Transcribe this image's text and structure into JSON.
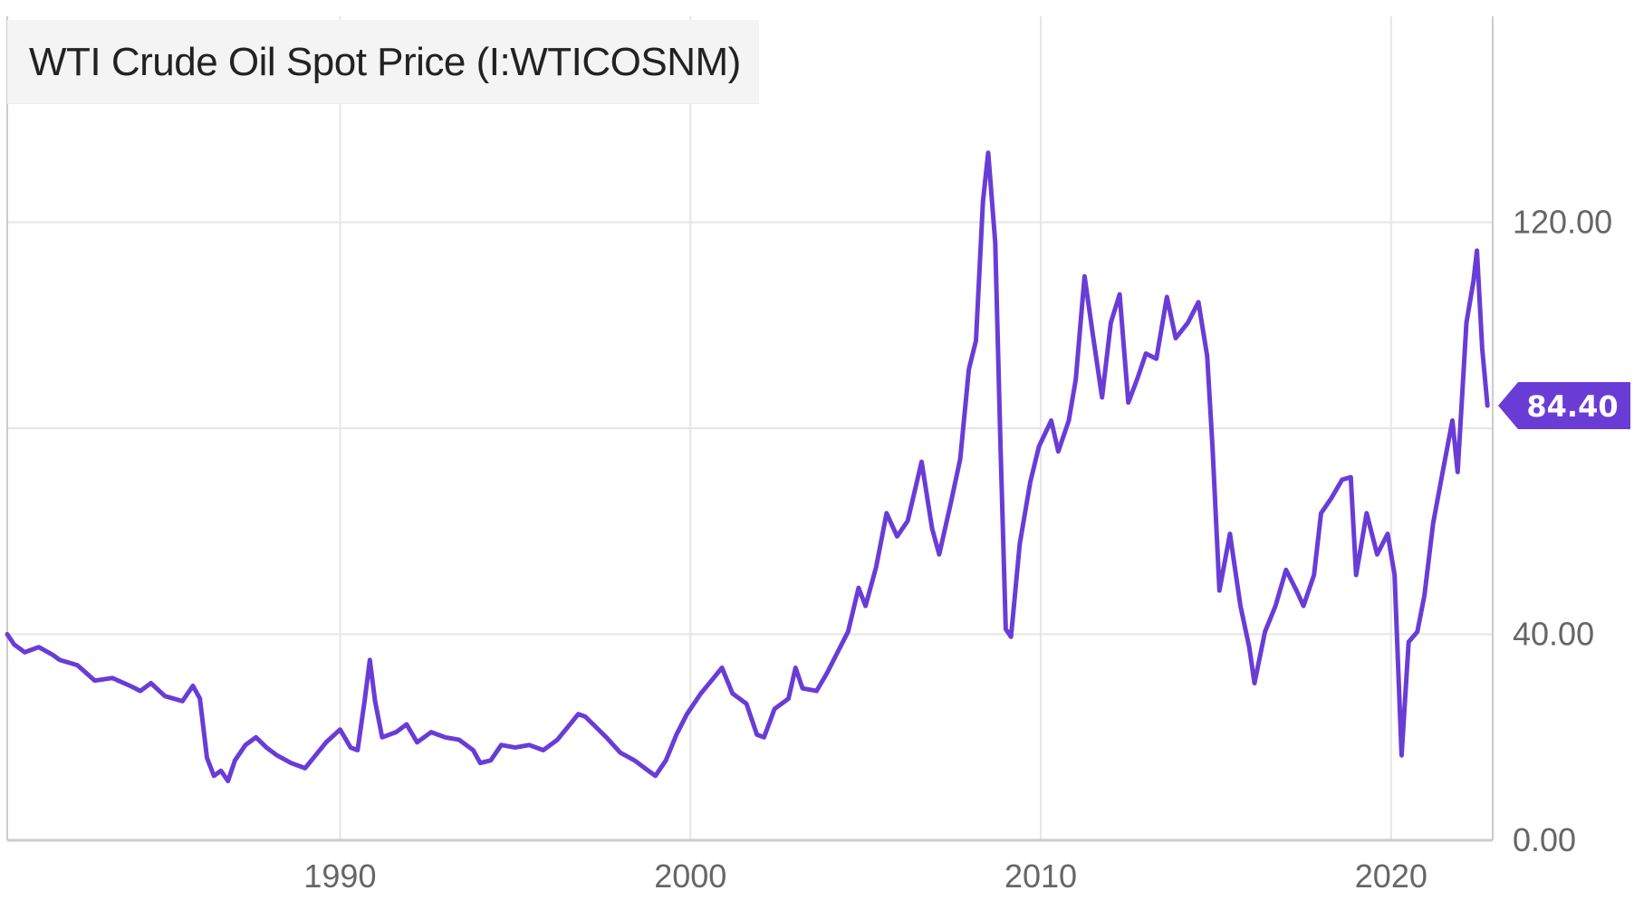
{
  "chart_data": {
    "type": "line",
    "title": "WTI Crude Oil Spot Price (I:WTICOSNM)",
    "xlabel": "",
    "ylabel": "",
    "xlim": [
      1980.5,
      2022.9
    ],
    "ylim": [
      0,
      160
    ],
    "x_ticks": [
      1990,
      2000,
      2010,
      2020
    ],
    "x_tick_labels": [
      "1990",
      "2000",
      "2010",
      "2020"
    ],
    "y_ticks": [
      0,
      40,
      80,
      120
    ],
    "y_tick_labels": [
      "0.00",
      "40.00",
      "",
      "120.00"
    ],
    "grid": true,
    "last_value_label": "84.40",
    "colors": {
      "line": "#6a3cd6",
      "badge": "#6a3cd6",
      "grid": "#e6e6e6",
      "axis": "#cccccc"
    },
    "series": [
      {
        "values": [
          [
            1980.5,
            40.0
          ],
          [
            1980.7,
            38.0
          ],
          [
            1981.0,
            36.5
          ],
          [
            1981.4,
            37.5
          ],
          [
            1981.8,
            36.0
          ],
          [
            1982.0,
            35.0
          ],
          [
            1982.5,
            34.0
          ],
          [
            1983.0,
            31.0
          ],
          [
            1983.5,
            31.5
          ],
          [
            1984.0,
            30.0
          ],
          [
            1984.3,
            29.0
          ],
          [
            1984.6,
            30.5
          ],
          [
            1985.0,
            28.0
          ],
          [
            1985.5,
            27.0
          ],
          [
            1985.8,
            30.0
          ],
          [
            1986.0,
            27.5
          ],
          [
            1986.2,
            16.0
          ],
          [
            1986.4,
            12.5
          ],
          [
            1986.6,
            13.5
          ],
          [
            1986.8,
            11.5
          ],
          [
            1987.0,
            15.5
          ],
          [
            1987.3,
            18.5
          ],
          [
            1987.6,
            20.0
          ],
          [
            1987.9,
            18.0
          ],
          [
            1988.2,
            16.5
          ],
          [
            1988.6,
            15.0
          ],
          [
            1989.0,
            14.0
          ],
          [
            1989.3,
            16.5
          ],
          [
            1989.6,
            19.0
          ],
          [
            1990.0,
            21.5
          ],
          [
            1990.3,
            18.0
          ],
          [
            1990.5,
            17.5
          ],
          [
            1990.7,
            27.0
          ],
          [
            1990.85,
            35.0
          ],
          [
            1991.0,
            27.0
          ],
          [
            1991.2,
            20.0
          ],
          [
            1991.6,
            21.0
          ],
          [
            1991.9,
            22.5
          ],
          [
            1992.2,
            19.0
          ],
          [
            1992.6,
            21.0
          ],
          [
            1993.0,
            20.0
          ],
          [
            1993.4,
            19.5
          ],
          [
            1993.8,
            17.5
          ],
          [
            1994.0,
            15.0
          ],
          [
            1994.3,
            15.5
          ],
          [
            1994.6,
            18.5
          ],
          [
            1995.0,
            18.0
          ],
          [
            1995.4,
            18.5
          ],
          [
            1995.8,
            17.5
          ],
          [
            1996.2,
            19.5
          ],
          [
            1996.5,
            22.0
          ],
          [
            1996.8,
            24.5
          ],
          [
            1997.0,
            24.0
          ],
          [
            1997.3,
            22.0
          ],
          [
            1997.6,
            20.0
          ],
          [
            1998.0,
            17.0
          ],
          [
            1998.4,
            15.5
          ],
          [
            1998.8,
            13.5
          ],
          [
            1999.0,
            12.5
          ],
          [
            1999.3,
            15.5
          ],
          [
            1999.6,
            20.5
          ],
          [
            1999.9,
            24.5
          ],
          [
            2000.3,
            28.5
          ],
          [
            2000.6,
            31.0
          ],
          [
            2000.9,
            33.5
          ],
          [
            2001.2,
            28.5
          ],
          [
            2001.6,
            26.5
          ],
          [
            2001.9,
            20.5
          ],
          [
            2002.1,
            20.0
          ],
          [
            2002.4,
            25.5
          ],
          [
            2002.8,
            27.5
          ],
          [
            2003.0,
            33.5
          ],
          [
            2003.2,
            29.5
          ],
          [
            2003.6,
            29.0
          ],
          [
            2003.9,
            32.5
          ],
          [
            2004.2,
            36.5
          ],
          [
            2004.5,
            40.5
          ],
          [
            2004.8,
            49.0
          ],
          [
            2005.0,
            45.5
          ],
          [
            2005.3,
            53.0
          ],
          [
            2005.6,
            63.5
          ],
          [
            2005.9,
            59.0
          ],
          [
            2006.2,
            62.0
          ],
          [
            2006.6,
            73.5
          ],
          [
            2006.9,
            60.5
          ],
          [
            2007.1,
            55.5
          ],
          [
            2007.4,
            64.5
          ],
          [
            2007.7,
            74.0
          ],
          [
            2007.95,
            91.5
          ],
          [
            2008.15,
            97.0
          ],
          [
            2008.35,
            124.0
          ],
          [
            2008.5,
            133.5
          ],
          [
            2008.7,
            116.0
          ],
          [
            2008.85,
            76.5
          ],
          [
            2009.0,
            41.0
          ],
          [
            2009.15,
            39.5
          ],
          [
            2009.4,
            57.5
          ],
          [
            2009.7,
            69.5
          ],
          [
            2009.95,
            76.5
          ],
          [
            2010.3,
            81.5
          ],
          [
            2010.5,
            75.5
          ],
          [
            2010.8,
            81.5
          ],
          [
            2011.0,
            89.5
          ],
          [
            2011.25,
            109.5
          ],
          [
            2011.5,
            97.5
          ],
          [
            2011.75,
            86.0
          ],
          [
            2012.0,
            100.5
          ],
          [
            2012.25,
            106.0
          ],
          [
            2012.5,
            85.0
          ],
          [
            2012.75,
            89.5
          ],
          [
            2013.0,
            94.5
          ],
          [
            2013.3,
            93.5
          ],
          [
            2013.6,
            105.5
          ],
          [
            2013.85,
            97.5
          ],
          [
            2014.2,
            100.5
          ],
          [
            2014.5,
            104.5
          ],
          [
            2014.75,
            94.0
          ],
          [
            2014.9,
            76.5
          ],
          [
            2015.1,
            48.5
          ],
          [
            2015.4,
            59.5
          ],
          [
            2015.7,
            45.5
          ],
          [
            2015.95,
            37.5
          ],
          [
            2016.1,
            30.5
          ],
          [
            2016.4,
            40.5
          ],
          [
            2016.7,
            45.5
          ],
          [
            2017.0,
            52.5
          ],
          [
            2017.3,
            48.5
          ],
          [
            2017.5,
            45.5
          ],
          [
            2017.8,
            51.5
          ],
          [
            2018.0,
            63.5
          ],
          [
            2018.3,
            66.5
          ],
          [
            2018.6,
            70.0
          ],
          [
            2018.85,
            70.5
          ],
          [
            2019.0,
            51.5
          ],
          [
            2019.3,
            63.5
          ],
          [
            2019.6,
            55.5
          ],
          [
            2019.9,
            59.5
          ],
          [
            2020.1,
            51.5
          ],
          [
            2020.3,
            16.5
          ],
          [
            2020.5,
            38.5
          ],
          [
            2020.75,
            40.5
          ],
          [
            2020.95,
            47.5
          ],
          [
            2021.2,
            61.5
          ],
          [
            2021.5,
            72.5
          ],
          [
            2021.75,
            81.5
          ],
          [
            2021.9,
            71.5
          ],
          [
            2022.15,
            100.5
          ],
          [
            2022.35,
            108.5
          ],
          [
            2022.45,
            114.5
          ],
          [
            2022.6,
            95.5
          ],
          [
            2022.75,
            84.4
          ]
        ]
      }
    ]
  }
}
